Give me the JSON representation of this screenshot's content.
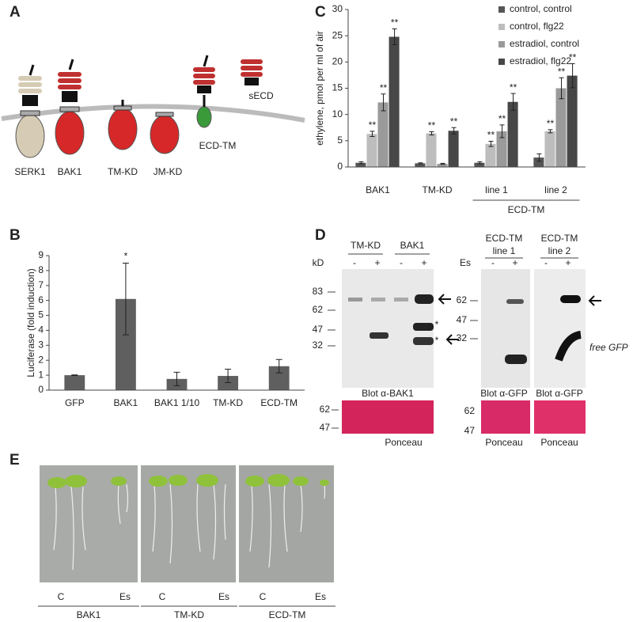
{
  "panel_labels": [
    "A",
    "B",
    "C",
    "D",
    "E"
  ],
  "diagram_a": {
    "labels": [
      "SERK1",
      "BAK1",
      "TM-KD",
      "JM-KD",
      "ECD-TM",
      "sECD"
    ]
  },
  "chart_data": [
    {
      "type": "bar",
      "ylabel": "Luciferase (fold induction)",
      "categories": [
        "GFP",
        "BAK1",
        "BAK1 1/10",
        "TM-KD",
        "ECD-TM"
      ],
      "values": [
        1.0,
        6.1,
        0.75,
        0.95,
        1.6
      ],
      "errors": [
        0.02,
        2.4,
        0.45,
        0.45,
        0.45
      ],
      "value_annotations": [
        null,
        "*",
        null,
        null,
        null
      ],
      "color": "#5f5f5f",
      "ylim": [
        0,
        9
      ],
      "yticks": [
        0,
        1,
        2,
        3,
        4,
        5,
        6,
        7,
        8,
        9
      ]
    },
    {
      "type": "grouped-bar",
      "ylabel": "ethylene, pmol per ml of air",
      "categories": [
        "BAK1",
        "TM-KD",
        "line 1",
        "line 2"
      ],
      "group_label": "ECD-TM",
      "series": [
        {
          "name": "control, control",
          "color": "#555555",
          "values": [
            0.8,
            0.7,
            0.8,
            1.8
          ],
          "errors": [
            0.2,
            0.1,
            0.2,
            0.7
          ],
          "significance": [
            null,
            null,
            null,
            null
          ]
        },
        {
          "name": "control, flg22",
          "color": "#bdbdbd",
          "values": [
            6.3,
            6.4,
            4.4,
            6.8
          ],
          "errors": [
            0.5,
            0.3,
            0.5,
            0.3
          ],
          "significance": [
            "**",
            "**",
            "**",
            "**"
          ]
        },
        {
          "name": "estradiol, control",
          "color": "#9a9a9a",
          "values": [
            12.3,
            0.6,
            6.8,
            15
          ],
          "errors": [
            1.6,
            0.1,
            1.2,
            2
          ],
          "significance": [
            "**",
            null,
            "**",
            "**"
          ]
        },
        {
          "name": "estradiol, flg22",
          "color": "#474747",
          "values": [
            24.8,
            6.9,
            12.4,
            17.4
          ],
          "errors": [
            1.5,
            0.6,
            1.6,
            2.3
          ],
          "significance": [
            "**",
            "**",
            "**",
            "**"
          ]
        }
      ],
      "ylim": [
        0,
        30
      ],
      "yticks": [
        0,
        5,
        10,
        15,
        20,
        25,
        30
      ],
      "legend": "upper right"
    }
  ],
  "blot_d": {
    "kd_label": "kD",
    "es_label": "Es",
    "left": {
      "groups": [
        "TM-KD",
        "BAK1"
      ],
      "lanes": [
        "-",
        "+",
        "-",
        "+"
      ],
      "markers": [
        83,
        62,
        47,
        32
      ],
      "band_marks": [
        "*",
        "*"
      ],
      "blot": "Blot α-BAK1",
      "ponceau_markers": [
        62,
        47
      ],
      "ponceau": "Ponceau"
    },
    "right": {
      "groups": [
        [
          "ECD-TM",
          "line 1"
        ],
        [
          "ECD-TM",
          "line  2"
        ]
      ],
      "lanes": [
        "-",
        "+",
        "-",
        "+"
      ],
      "markers": [
        62,
        47,
        32
      ],
      "free_gfp": "free GFP",
      "blots": [
        "Blot α-GFP",
        "Blot α-GFP"
      ],
      "ponceau_markers": [
        62,
        47
      ],
      "ponceau": [
        "Ponceau",
        "Ponceau"
      ]
    }
  },
  "photo_e": {
    "lanes": [
      "C",
      "Es",
      "C",
      "Es",
      "C",
      "Es"
    ],
    "groups": [
      "BAK1",
      "TM-KD",
      "ECD-TM"
    ]
  }
}
